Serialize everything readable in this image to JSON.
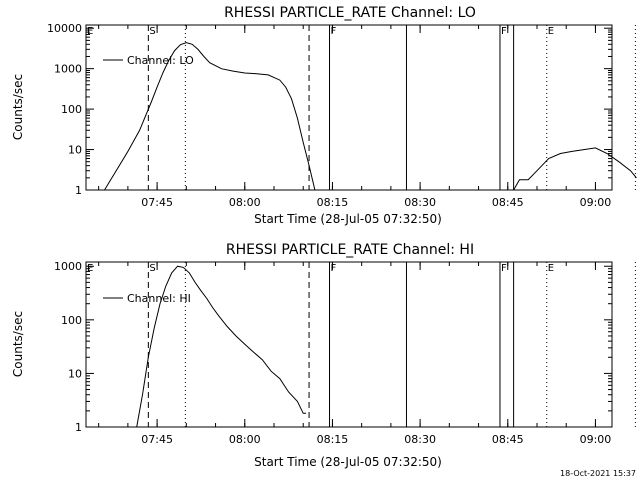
{
  "chart_data": [
    {
      "type": "line",
      "title": "RHESSI PARTICLE_RATE Channel: LO",
      "xlabel": "Start Time (28-Jul-05 07:32:50)",
      "ylabel": "Counts/sec",
      "yscale": "log",
      "ylim": [
        1,
        12000
      ],
      "xlim_minutes": [
        0,
        90
      ],
      "x_tick_labels": [
        "07:45",
        "08:00",
        "08:15",
        "08:30",
        "08:45",
        "09:00"
      ],
      "y_tick_labels": [
        "1",
        "10",
        "100",
        "1000",
        "10000"
      ],
      "legend": [
        "Channel: LO"
      ],
      "event_markers": [
        {
          "label": "E",
          "time": "07:32:50"
        },
        {
          "label": "S",
          "time": "07:43:30"
        },
        {
          "label": "F",
          "time": "08:14:30"
        },
        {
          "label": "F",
          "time": "08:43:40"
        },
        {
          "label": "E",
          "time": "08:51:40"
        }
      ],
      "series": [
        {
          "x": [
            "07:36:00",
            "07:38:00",
            "07:40:00",
            "07:42:00",
            "07:44:00",
            "07:45:00",
            "07:46:00",
            "07:47:00",
            "07:48:00",
            "07:49:00",
            "07:50:00",
            "07:51:00",
            "07:52:00",
            "07:53:00",
            "07:54:00",
            "07:56:00",
            "07:58:00",
            "08:00:00",
            "08:02:00",
            "08:04:00",
            "08:06:00",
            "08:07:00",
            "08:08:00",
            "08:09:00",
            "08:10:00",
            "08:11:00",
            "08:12:00",
            "08:46:00",
            "08:47:00",
            "08:48:00",
            "08:48:30",
            "08:50:00",
            "08:52:00",
            "08:54:00",
            "08:56:00",
            "08:58:00",
            "09:00:00",
            "09:02:00",
            "09:04:00",
            "09:06:00",
            "09:07:00"
          ],
          "y": [
            1,
            3,
            9,
            30,
            150,
            350,
            800,
            1600,
            2800,
            3900,
            4400,
            4000,
            3000,
            2000,
            1400,
            1000,
            870,
            780,
            750,
            700,
            520,
            350,
            180,
            60,
            15,
            4,
            1,
            1,
            1.8,
            1.8,
            1.8,
            3,
            6,
            8,
            9,
            10,
            11,
            8,
            5,
            3,
            2
          ]
        }
      ]
    },
    {
      "type": "line",
      "title": "RHESSI PARTICLE_RATE Channel: HI",
      "xlabel": "Start Time (28-Jul-05 07:32:50)",
      "ylabel": "Counts/sec",
      "yscale": "log",
      "ylim": [
        1,
        1200
      ],
      "xlim_minutes": [
        0,
        90
      ],
      "x_tick_labels": [
        "07:45",
        "08:00",
        "08:15",
        "08:30",
        "08:45",
        "09:00"
      ],
      "y_tick_labels": [
        "1",
        "10",
        "100",
        "1000"
      ],
      "legend": [
        "Channel: HI"
      ],
      "event_markers": [
        {
          "label": "E",
          "time": "07:32:50"
        },
        {
          "label": "S",
          "time": "07:43:30"
        },
        {
          "label": "F",
          "time": "08:14:30"
        },
        {
          "label": "F",
          "time": "08:43:40"
        },
        {
          "label": "E",
          "time": "08:51:40"
        }
      ],
      "series": [
        {
          "x": [
            "07:41:30",
            "07:42:30",
            "07:43:30",
            "07:44:30",
            "07:45:30",
            "07:46:30",
            "07:47:30",
            "07:48:30",
            "07:49:30",
            "07:50:30",
            "07:51:30",
            "07:52:30",
            "07:53:30",
            "07:54:30",
            "07:55:30",
            "07:57:00",
            "07:58:30",
            "08:00:00",
            "08:01:30",
            "08:03:00",
            "08:04:30",
            "08:06:00",
            "08:07:30",
            "08:09:00",
            "08:10:00",
            "08:10:30"
          ],
          "y": [
            1,
            4,
            20,
            70,
            200,
            430,
            750,
            1000,
            950,
            750,
            500,
            350,
            250,
            170,
            120,
            75,
            50,
            35,
            25,
            18,
            11,
            8,
            4.5,
            3,
            1.8,
            1.8
          ]
        }
      ]
    }
  ],
  "footer_timestamp": "18-Oct-2021 15:37"
}
